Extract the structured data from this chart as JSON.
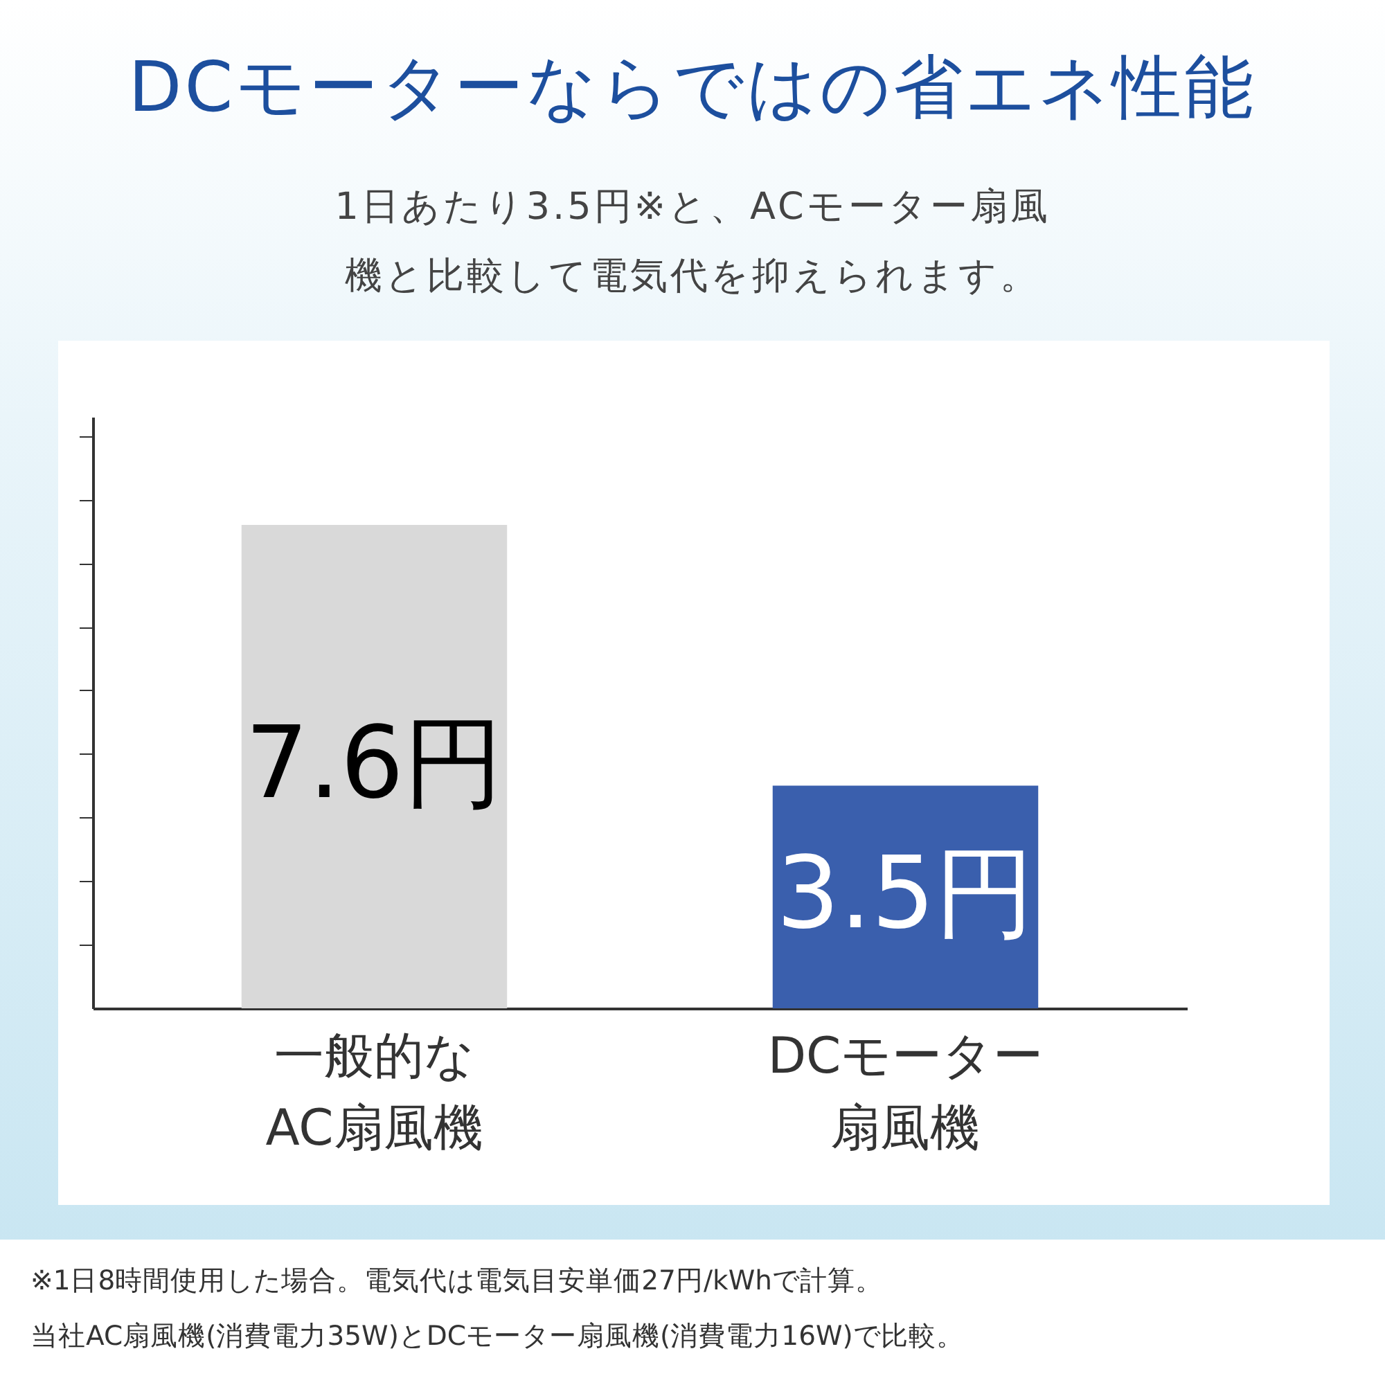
{
  "chart_data": {
    "type": "bar",
    "title": "DCモーターならではの省エネ性能",
    "subtitle": "1日あたり3.5円※と、ACモーター扇風機と比較して電気代を抑えられます。",
    "categories": [
      "一般的なAC扇風機",
      "DCモーター扇風機"
    ],
    "values": [
      7.6,
      3.5
    ],
    "colors": [
      "#d9d9d9",
      "#3a5fad"
    ],
    "value_labels": [
      "7.6円",
      "3.5円"
    ],
    "ylim": [
      0,
      9.3
    ],
    "yticks": [
      {
        "value": 1,
        "label": null
      },
      {
        "value": 2,
        "label": null
      },
      {
        "value": 3,
        "label": null
      },
      {
        "value": 4,
        "label": null
      },
      {
        "value": 5,
        "label": null
      },
      {
        "value": 6,
        "label": null
      },
      {
        "value": 7,
        "label": null
      },
      {
        "value": 8,
        "label": null
      },
      {
        "value": 9,
        "label": null
      }
    ],
    "tick_labels": "x",
    "annotations": [
      "※1日8時間使用した場合。電気代は電気目安単価27円/kWhで計算。",
      "当社AC扇風機(消費電力35W)とDCモーター扇風機(消費電力16W)で比較。"
    ]
  }
}
